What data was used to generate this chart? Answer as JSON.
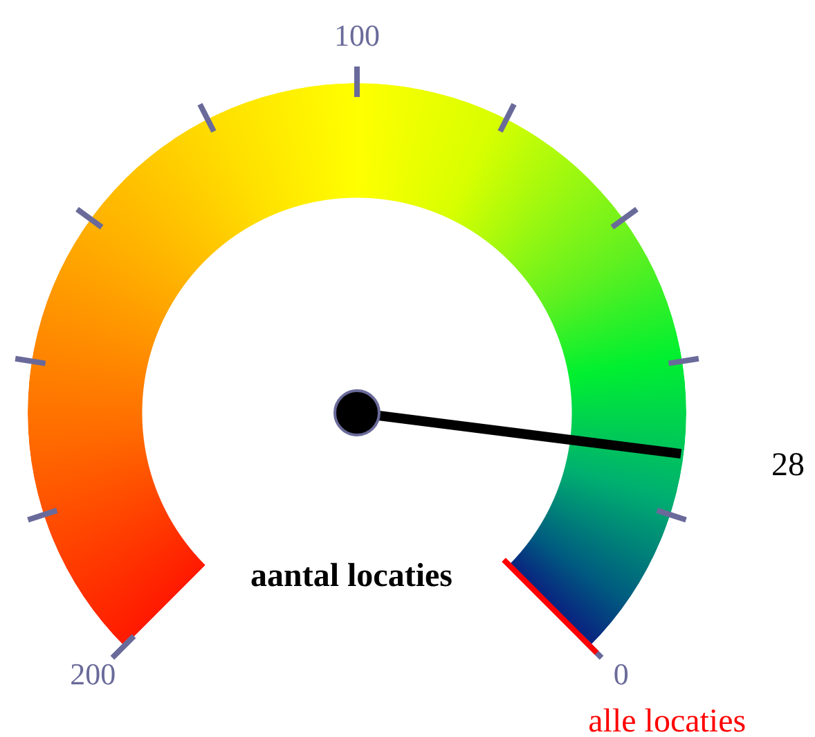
{
  "chart_data": {
    "type": "other",
    "title": "aantal locaties",
    "values": [
      28
    ],
    "data_labels": true,
    "annotations": [
      "0",
      "100",
      "200",
      "alle locaties"
    ]
  }
}
